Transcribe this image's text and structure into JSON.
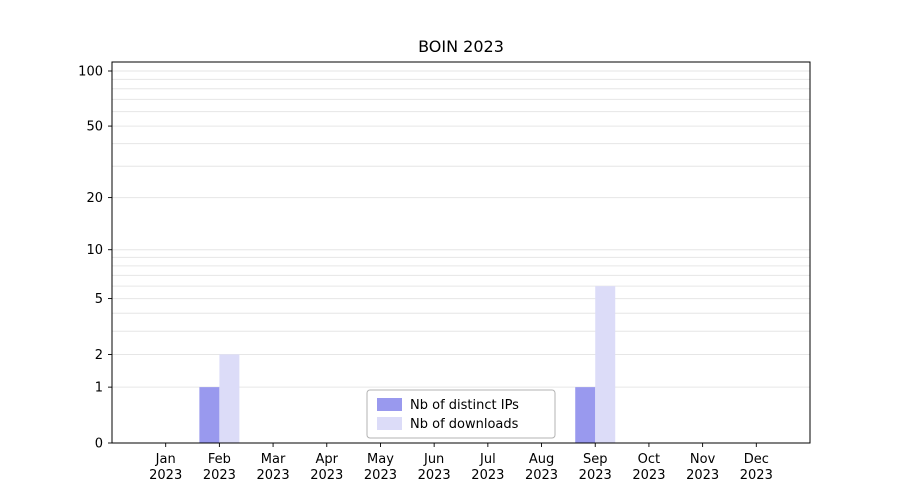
{
  "title": "BOIN 2023",
  "chart_data": {
    "type": "bar",
    "title": "BOIN 2023",
    "categories": [
      "Jan",
      "Feb",
      "Mar",
      "Apr",
      "May",
      "Jun",
      "Jul",
      "Aug",
      "Sep",
      "Oct",
      "Nov",
      "Dec"
    ],
    "category_year": "2023",
    "series": [
      {
        "name": "Nb of distinct IPs",
        "color": "#9999ee",
        "values": [
          0,
          1,
          0,
          0,
          0,
          0,
          0,
          0,
          1,
          0,
          0,
          0
        ]
      },
      {
        "name": "Nb of downloads",
        "color": "#dcdcf8",
        "values": [
          0,
          2,
          0,
          0,
          0,
          0,
          0,
          0,
          6,
          0,
          0,
          0
        ]
      }
    ],
    "yticks": [
      0,
      1,
      2,
      5,
      10,
      20,
      50,
      100
    ],
    "ylim": [
      0,
      100
    ],
    "scale": "log1p",
    "grid": "horizontal",
    "legend": {
      "position": "lower center"
    }
  },
  "colors": {
    "background": "#ffffff",
    "axis": "#000000",
    "grid": "#e6e6e6",
    "legend_border": "#b3b3b3",
    "legend_fill": "#ffffff",
    "text": "#000000"
  }
}
